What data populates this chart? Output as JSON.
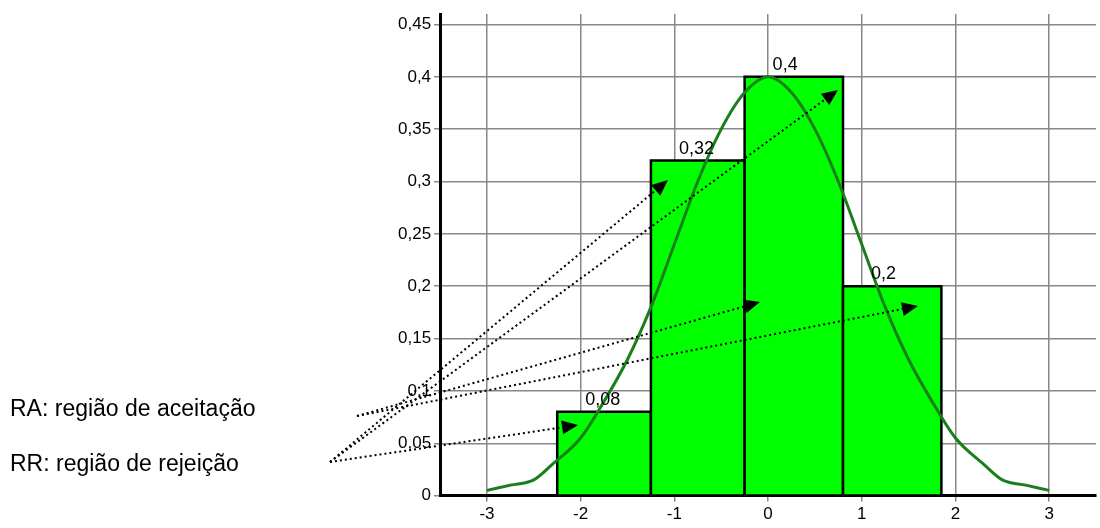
{
  "chart_data": {
    "type": "histogram",
    "bins": [
      -2.25,
      -1.25,
      -0.25,
      0.8,
      1.85
    ],
    "values": [
      0.08,
      0.32,
      0.4,
      0.2
    ],
    "color": "#00ff00",
    "value_labels": [
      "0,08",
      "0,32",
      "0,4",
      "0,2"
    ],
    "series": [
      {
        "type": "line",
        "color": "#1a7f1a",
        "x": [
          -3,
          -2.75,
          -2.5,
          -2.3,
          -2,
          -1.75,
          -1.5,
          -1.25,
          -1,
          -0.75,
          -0.5,
          -0.25,
          0,
          0.25,
          0.5,
          0.75,
          1,
          1.25,
          1.5,
          1.75,
          2,
          2.3,
          2.5,
          2.75,
          3
        ],
        "values": [
          0.005,
          0.01,
          0.015,
          0.03,
          0.055,
          0.09,
          0.13,
          0.18,
          0.24,
          0.3,
          0.35,
          0.385,
          0.4,
          0.385,
          0.35,
          0.3,
          0.24,
          0.18,
          0.13,
          0.09,
          0.055,
          0.03,
          0.015,
          0.01,
          0.005
        ]
      }
    ],
    "xlim": [
      -3.5,
      3.5
    ],
    "xticks": [
      -3,
      -2,
      -1,
      0,
      1,
      2,
      3
    ],
    "ylim": [
      0,
      0.46
    ],
    "yticks": [
      0,
      {
        "value": 0.05,
        "label": "0,05"
      },
      {
        "value": 0.1,
        "label": "0,1"
      },
      {
        "value": 0.15,
        "label": "0,15"
      },
      {
        "value": 0.2,
        "label": "0,2"
      },
      {
        "value": 0.25,
        "label": "0,25"
      },
      {
        "value": 0.3,
        "label": "0,3"
      },
      {
        "value": 0.35,
        "label": "0,35"
      },
      {
        "value": 0.4,
        "label": "0,4"
      },
      {
        "value": 0.45,
        "label": "0,45"
      }
    ],
    "grid": true,
    "marker": "none",
    "legend": false,
    "annotations": [
      "RA: região de aceitação",
      "RR: região de rejeição"
    ]
  }
}
